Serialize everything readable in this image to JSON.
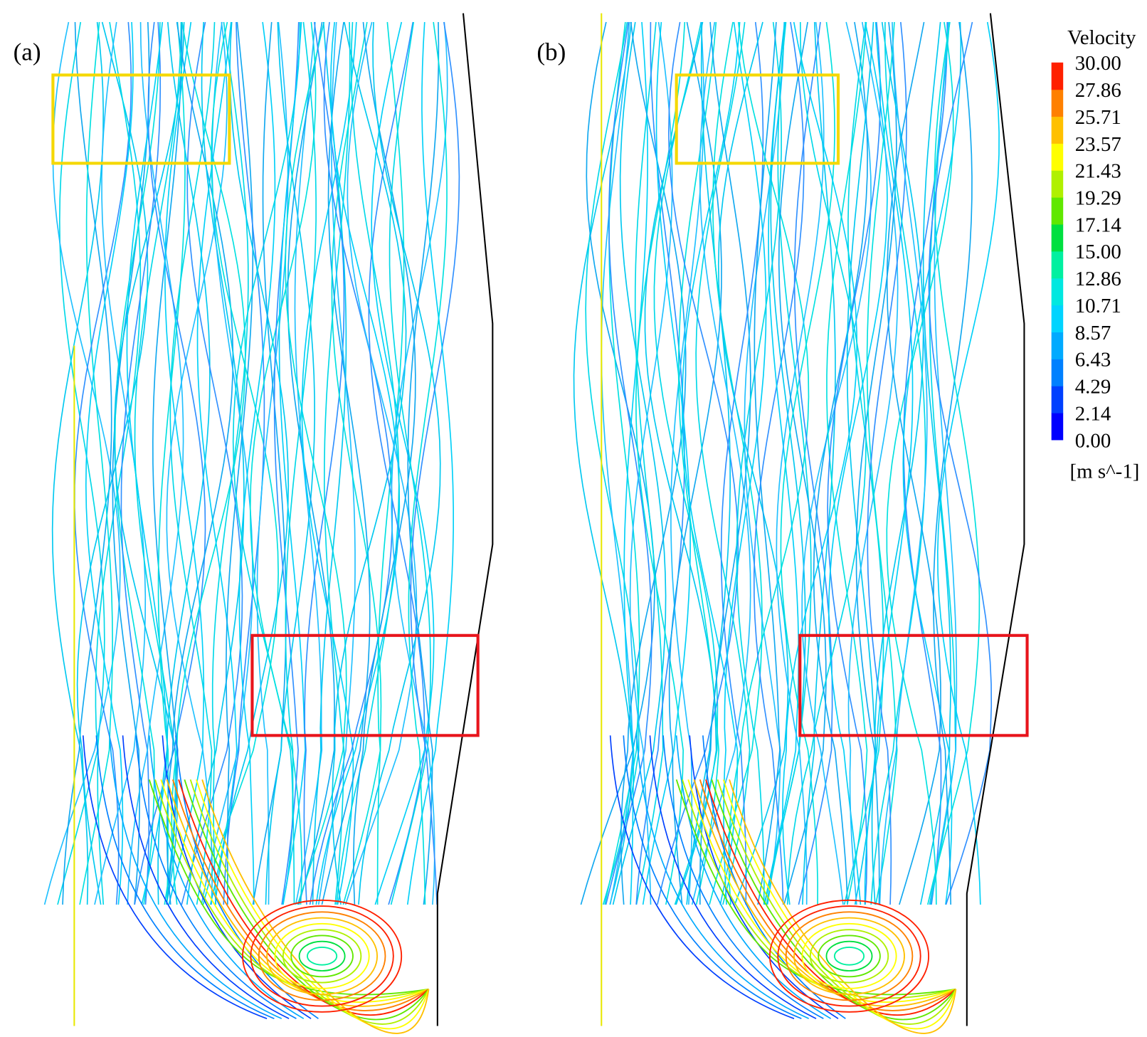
{
  "panels": [
    {
      "label": "(a)"
    },
    {
      "label": "(b)"
    }
  ],
  "colorbar": {
    "title": "Velocity",
    "ticks": [
      "30.00",
      "27.86",
      "25.71",
      "23.57",
      "21.43",
      "19.29",
      "17.14",
      "15.00",
      "12.86",
      "10.71",
      "8.57",
      "6.43",
      "4.29",
      "2.14",
      "0.00"
    ],
    "unit": "[m s^-1]"
  }
}
